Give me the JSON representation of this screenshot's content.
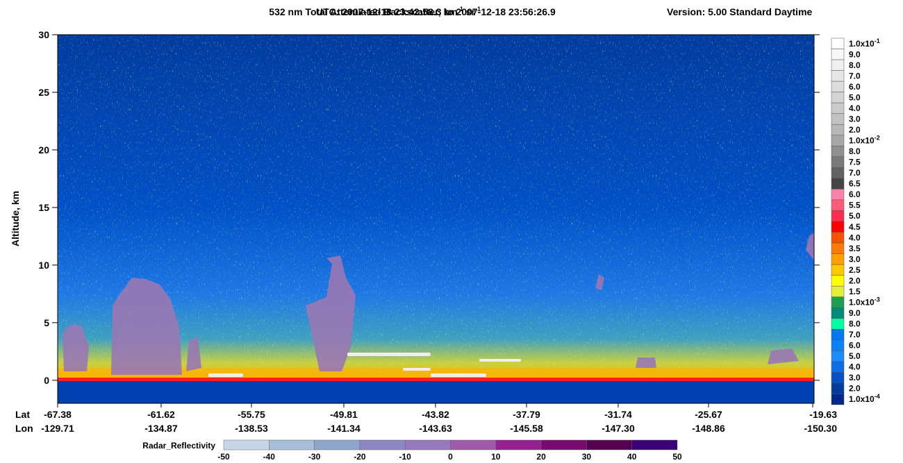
{
  "chart_data": {
    "type": "curtain",
    "title": {
      "parts": [
        "532 nm Total Attenuated Backscatter, km",
        "-1",
        " sr",
        "-1"
      ],
      "utc": "UTC:  2007-12-18 23:42:58.3  to  2007-12-18 23:56:26.9",
      "version": "Version: 5.00  Standard  Daytime"
    },
    "y_label": "Altitude, km",
    "ylim": [
      -2,
      30
    ],
    "yticks": [
      0,
      5,
      10,
      15,
      20,
      25,
      30
    ],
    "lat_label": "Lat",
    "lon_label": "Lon",
    "lat": [
      "-67.38",
      "-61.62",
      "-55.75",
      "-49.81",
      "-43.82",
      "-37.79",
      "-31.74",
      "-25.67",
      "-19.63"
    ],
    "lon": [
      "-129.71",
      "-134.87",
      "-138.53",
      "-141.34",
      "-143.63",
      "-145.58",
      "-147.30",
      "-148.86",
      "-150.30"
    ],
    "colorbar": [
      {
        "label": "1.0x10",
        "exp": "-1",
        "color": "#ffffff"
      },
      {
        "label": "9.0",
        "color": "#f7f7f7"
      },
      {
        "label": "8.0",
        "color": "#efefef"
      },
      {
        "label": "7.0",
        "color": "#e6e6e6"
      },
      {
        "label": "6.0",
        "color": "#dddddd"
      },
      {
        "label": "5.0",
        "color": "#d4d4d4"
      },
      {
        "label": "4.0",
        "color": "#cbcbcb"
      },
      {
        "label": "3.0",
        "color": "#c2c2c2"
      },
      {
        "label": "2.0",
        "color": "#b8b8b8"
      },
      {
        "label": "1.0x10",
        "exp": "-2",
        "color": "#a6a6a6"
      },
      {
        "label": "8.0",
        "color": "#8f8f8f"
      },
      {
        "label": "7.5",
        "color": "#7a7a7a"
      },
      {
        "label": "7.0",
        "color": "#636363"
      },
      {
        "label": "6.5",
        "color": "#454545"
      },
      {
        "label": "6.0",
        "color": "#ff80a8"
      },
      {
        "label": "5.5",
        "color": "#ff5a7a"
      },
      {
        "label": "5.0",
        "color": "#ff2d4e"
      },
      {
        "label": "4.5",
        "color": "#ff0000"
      },
      {
        "label": "4.0",
        "color": "#ff5000"
      },
      {
        "label": "3.5",
        "color": "#ff7a00"
      },
      {
        "label": "3.0",
        "color": "#ffa000"
      },
      {
        "label": "2.5",
        "color": "#ffc800"
      },
      {
        "label": "2.0",
        "color": "#ffff00"
      },
      {
        "label": "1.5",
        "color": "#e1f032"
      },
      {
        "label": "1.0x10",
        "exp": "-3",
        "color": "#1e9e50"
      },
      {
        "label": "9.0",
        "color": "#008c78"
      },
      {
        "label": "8.0",
        "color": "#00ffa0"
      },
      {
        "label": "7.0",
        "color": "#0078f0"
      },
      {
        "label": "6.0",
        "color": "#0a82ff"
      },
      {
        "label": "5.0",
        "color": "#1e8cff"
      },
      {
        "label": "4.0",
        "color": "#0a6ee6"
      },
      {
        "label": "3.0",
        "color": "#0050c8"
      },
      {
        "label": "2.0",
        "color": "#003ca0"
      },
      {
        "label": "1.0x10",
        "exp": "-4",
        "color": "#00288c"
      }
    ],
    "radar": {
      "label": "Radar_Reflectivity",
      "ticks": [
        -50,
        -40,
        -30,
        -20,
        -10,
        0,
        10,
        20,
        30,
        40,
        50
      ],
      "colors": [
        "#c6d6e6",
        "#a6bed8",
        "#8ea6cc",
        "#8c86c4",
        "#9678be",
        "#a05aaa",
        "#962090",
        "#780a70",
        "#560052",
        "#3c0078"
      ]
    }
  }
}
